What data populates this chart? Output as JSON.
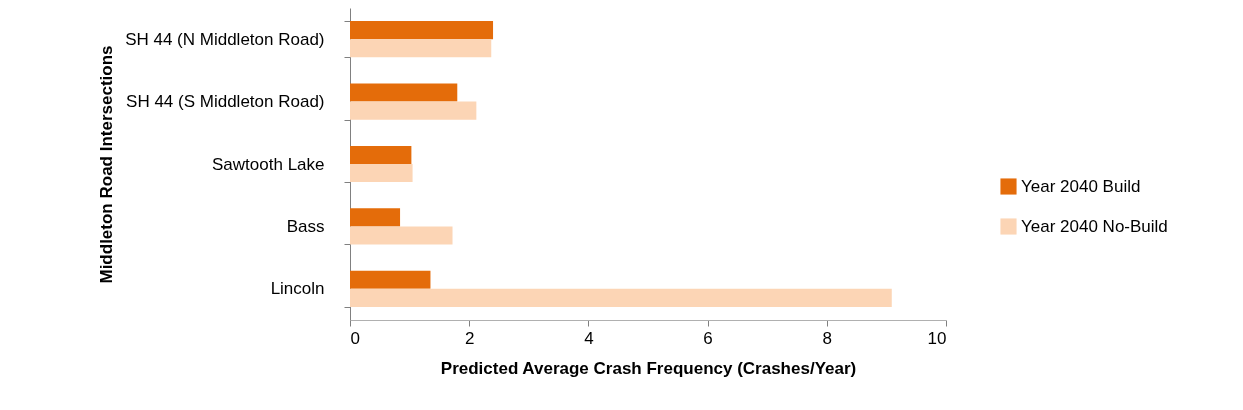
{
  "chart_data": {
    "type": "bar",
    "orientation": "horizontal",
    "xlabel": "Predicted Average Crash Frequency (Crashes/Year)",
    "ylabel": "Middleton Road Intersections",
    "categories": [
      "SH 44 (N Middleton Road)",
      "SH 44 (S Middleton Road)",
      "Sawtooth Lake",
      "Bass",
      "Lincoln"
    ],
    "series": [
      {
        "name": "Year 2040 Build",
        "color": "#e46c0a",
        "values": [
          2.4,
          1.8,
          1.03,
          0.84,
          1.35
        ]
      },
      {
        "name": "Year 2040 No-Build",
        "color": "#fcd5b5",
        "values": [
          2.37,
          2.12,
          1.05,
          1.72,
          9.09
        ]
      }
    ],
    "xlim": [
      0,
      10
    ],
    "xticks": [
      0,
      2,
      4,
      6,
      8,
      10
    ],
    "grid": false,
    "legend": "right"
  }
}
